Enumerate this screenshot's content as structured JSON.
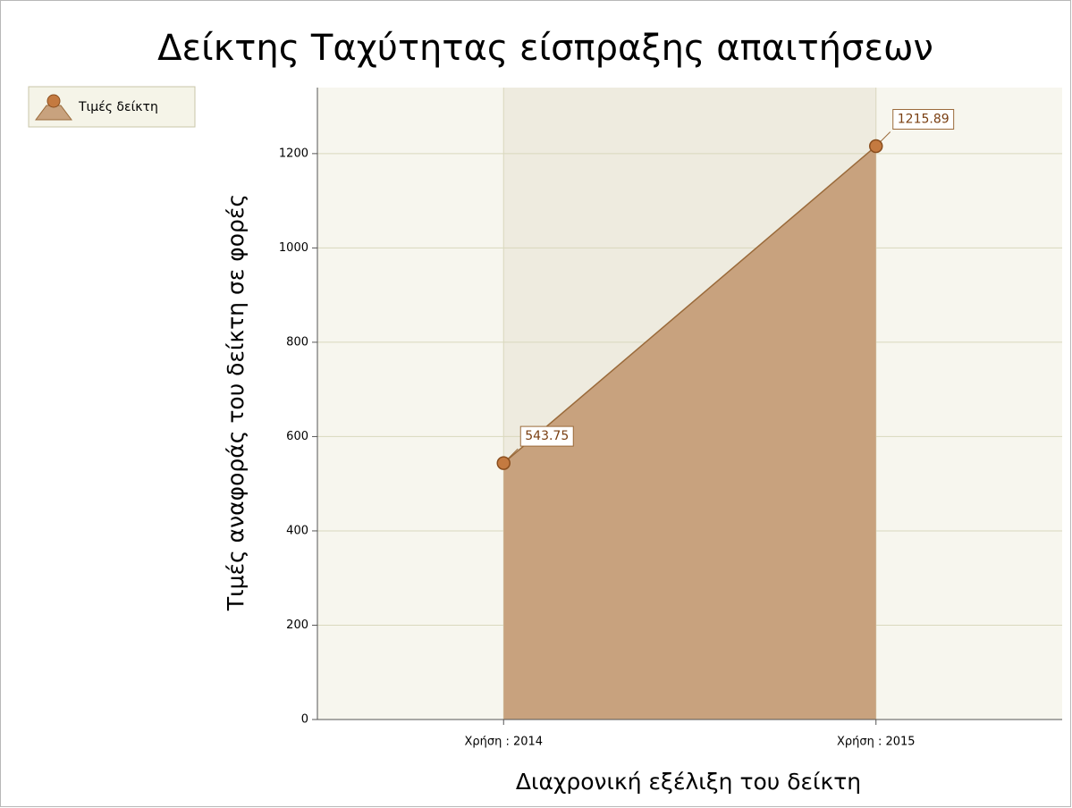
{
  "chart_data": {
    "type": "area",
    "title": "Δείκτης Ταχύτητας είσπραξης απαιτήσεων",
    "x_label": "Διαχρονική εξέλιξη του δείκτη",
    "y_label": "Τιμές αναφοράς του δείκτη σε φορές",
    "categories": [
      "Χρήση : 2014",
      "Χρήση : 2015"
    ],
    "series": [
      {
        "name": "Τιμές δείκτη",
        "color": "#c8a27e",
        "values": [
          543.75,
          1215.89
        ]
      }
    ],
    "ylim": [
      0,
      1340
    ],
    "yticks": [
      0,
      200,
      400,
      600,
      800,
      1000,
      1200
    ],
    "grid": true,
    "legend": "top-left"
  }
}
